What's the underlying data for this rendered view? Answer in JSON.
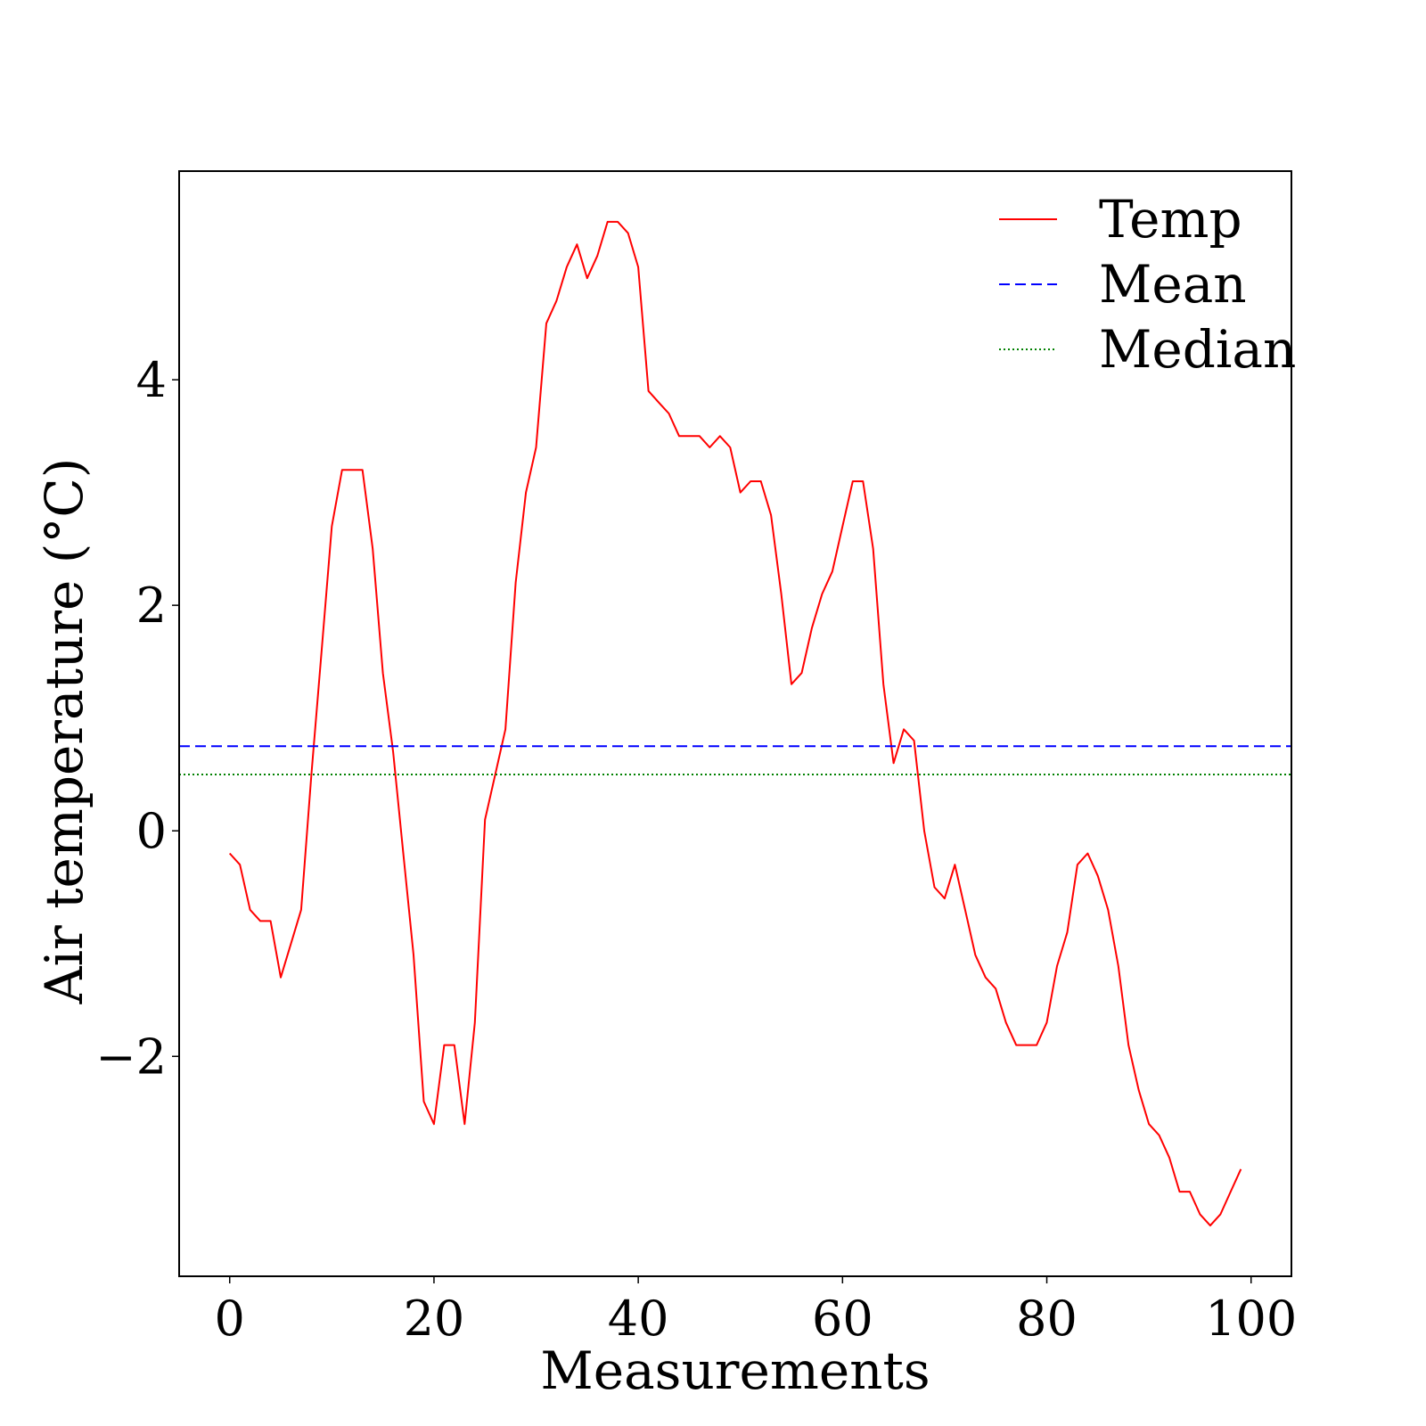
{
  "chart_data": {
    "type": "line",
    "xlabel": "Measurements",
    "ylabel": "Air temperature (°C)",
    "xlim": [
      -4.95,
      103.95
    ],
    "ylim": [
      -3.95,
      5.85
    ],
    "xticks": [
      0,
      20,
      40,
      60,
      80,
      100
    ],
    "yticks": [
      -2,
      0,
      2,
      4
    ],
    "xtick_labels": [
      "0",
      "20",
      "40",
      "60",
      "80",
      "100"
    ],
    "ytick_labels": [
      "−2",
      "0",
      "2",
      "4"
    ],
    "grid": false,
    "legend_position": "top-right",
    "series": [
      {
        "name": "Temp",
        "color": "#ff0000",
        "style": "solid",
        "x": [
          0,
          1,
          2,
          3,
          4,
          5,
          6,
          7,
          8,
          9,
          10,
          11,
          12,
          13,
          14,
          15,
          16,
          17,
          18,
          19,
          20,
          21,
          22,
          23,
          24,
          25,
          26,
          27,
          28,
          29,
          30,
          31,
          32,
          33,
          34,
          35,
          36,
          37,
          38,
          39,
          40,
          41,
          42,
          43,
          44,
          45,
          46,
          47,
          48,
          49,
          50,
          51,
          52,
          53,
          54,
          55,
          56,
          57,
          58,
          59,
          60,
          61,
          62,
          63,
          64,
          65,
          66,
          67,
          68,
          69,
          70,
          71,
          72,
          73,
          74,
          75,
          76,
          77,
          78,
          79,
          80,
          81,
          82,
          83,
          84,
          85,
          86,
          87,
          88,
          89,
          90,
          91,
          92,
          93,
          94,
          95,
          96,
          97,
          98,
          99
        ],
        "values": [
          -0.2,
          -0.3,
          -0.7,
          -0.8,
          -0.8,
          -1.3,
          -1.0,
          -0.7,
          0.5,
          1.6,
          2.7,
          3.2,
          3.2,
          3.2,
          2.5,
          1.4,
          0.7,
          -0.2,
          -1.1,
          -2.4,
          -2.6,
          -1.9,
          -1.9,
          -2.6,
          -1.7,
          0.1,
          0.5,
          0.9,
          2.2,
          3.0,
          3.4,
          4.5,
          4.7,
          5.0,
          5.2,
          4.9,
          5.1,
          5.4,
          5.4,
          5.3,
          5.0,
          3.9,
          3.8,
          3.7,
          3.5,
          3.5,
          3.5,
          3.4,
          3.5,
          3.4,
          3.0,
          3.1,
          3.1,
          2.8,
          2.1,
          1.3,
          1.4,
          1.8,
          2.1,
          2.3,
          2.7,
          3.1,
          3.1,
          2.5,
          1.3,
          0.6,
          0.9,
          0.8,
          0.0,
          -0.5,
          -0.6,
          -0.3,
          -0.7,
          -1.1,
          -1.3,
          -1.4,
          -1.7,
          -1.9,
          -1.9,
          -1.9,
          -1.7,
          -1.2,
          -0.9,
          -0.3,
          -0.2,
          -0.4,
          -0.7,
          -1.2,
          -1.9,
          -2.3,
          -2.6,
          -2.7,
          -2.9,
          -3.2,
          -3.2,
          -3.4,
          -3.5,
          -3.4,
          -3.2,
          -3.0
        ]
      },
      {
        "name": "Mean",
        "color": "#0000ff",
        "style": "dashed",
        "value": 0.75
      },
      {
        "name": "Median",
        "color": "#008000",
        "style": "dotted",
        "value": 0.5
      }
    ]
  }
}
